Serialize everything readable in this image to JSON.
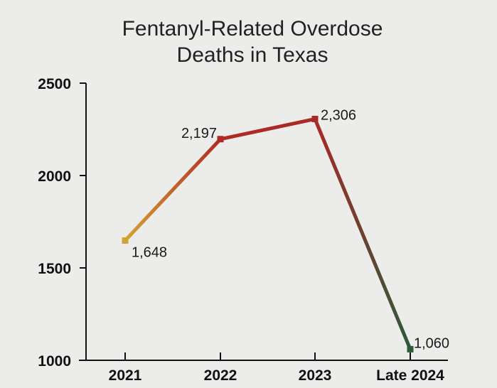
{
  "chart_data": {
    "type": "line",
    "title_lines": [
      "Fentanyl-Related Overdose",
      "Deaths in Texas"
    ],
    "categories": [
      "2021",
      "2022",
      "2023",
      "Late 2024"
    ],
    "values": [
      1648,
      2197,
      2306,
      1060
    ],
    "data_labels": [
      "1,648",
      "2,197",
      "2,306",
      "1,060"
    ],
    "point_colors": [
      "#d4a233",
      "#b02a24",
      "#a82a26",
      "#2d5a3a"
    ],
    "ylim": [
      1000,
      2500
    ],
    "yticks": [
      1000,
      1500,
      2000,
      2500
    ],
    "ytick_labels": [
      "1000",
      "1500",
      "2000",
      "2500"
    ],
    "xlabel": "",
    "ylabel": "",
    "grid": false,
    "legend": "none"
  }
}
